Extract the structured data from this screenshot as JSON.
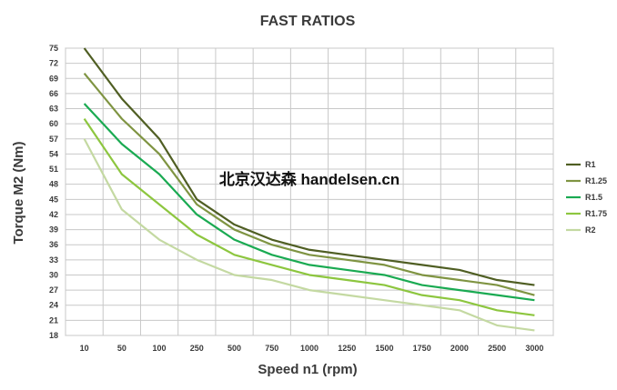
{
  "chart_data": {
    "type": "line",
    "title": "FAST RATIOS",
    "xlabel": "Speed n1 (rpm)",
    "ylabel": "Torque M2 (Nm)",
    "x": [
      "10",
      "50",
      "100",
      "250",
      "500",
      "750",
      "1000",
      "1250",
      "1500",
      "1750",
      "2000",
      "2500",
      "3000"
    ],
    "y_ticks": [
      18,
      21,
      24,
      27,
      30,
      33,
      36,
      39,
      42,
      45,
      48,
      51,
      54,
      57,
      60,
      63,
      66,
      69,
      72,
      75
    ],
    "ylim": [
      18,
      75
    ],
    "grid": true,
    "legend_position": "right",
    "series": [
      {
        "name": "R1",
        "color": "#4f5e23",
        "values": [
          75,
          65,
          57,
          45,
          40,
          37,
          35,
          34,
          33,
          32,
          31,
          29,
          28
        ]
      },
      {
        "name": "R1.25",
        "color": "#7f9442",
        "values": [
          70,
          61,
          54,
          44,
          39,
          36,
          34,
          33,
          32,
          30,
          29,
          28,
          26
        ]
      },
      {
        "name": "R1.5",
        "color": "#1aaa52",
        "values": [
          64,
          56,
          50,
          42,
          37,
          34,
          32,
          31,
          30,
          28,
          27,
          26,
          25
        ]
      },
      {
        "name": "R1.75",
        "color": "#8dc63f",
        "values": [
          61,
          50,
          44,
          38,
          34,
          32,
          30,
          29,
          28,
          26,
          25,
          23,
          22
        ]
      },
      {
        "name": "R2",
        "color": "#c4d9a2",
        "values": [
          57,
          43,
          37,
          33,
          30,
          29,
          27,
          26,
          25,
          24,
          23,
          20,
          19
        ]
      }
    ]
  },
  "watermark": "北京汉达森 handelsen.cn"
}
